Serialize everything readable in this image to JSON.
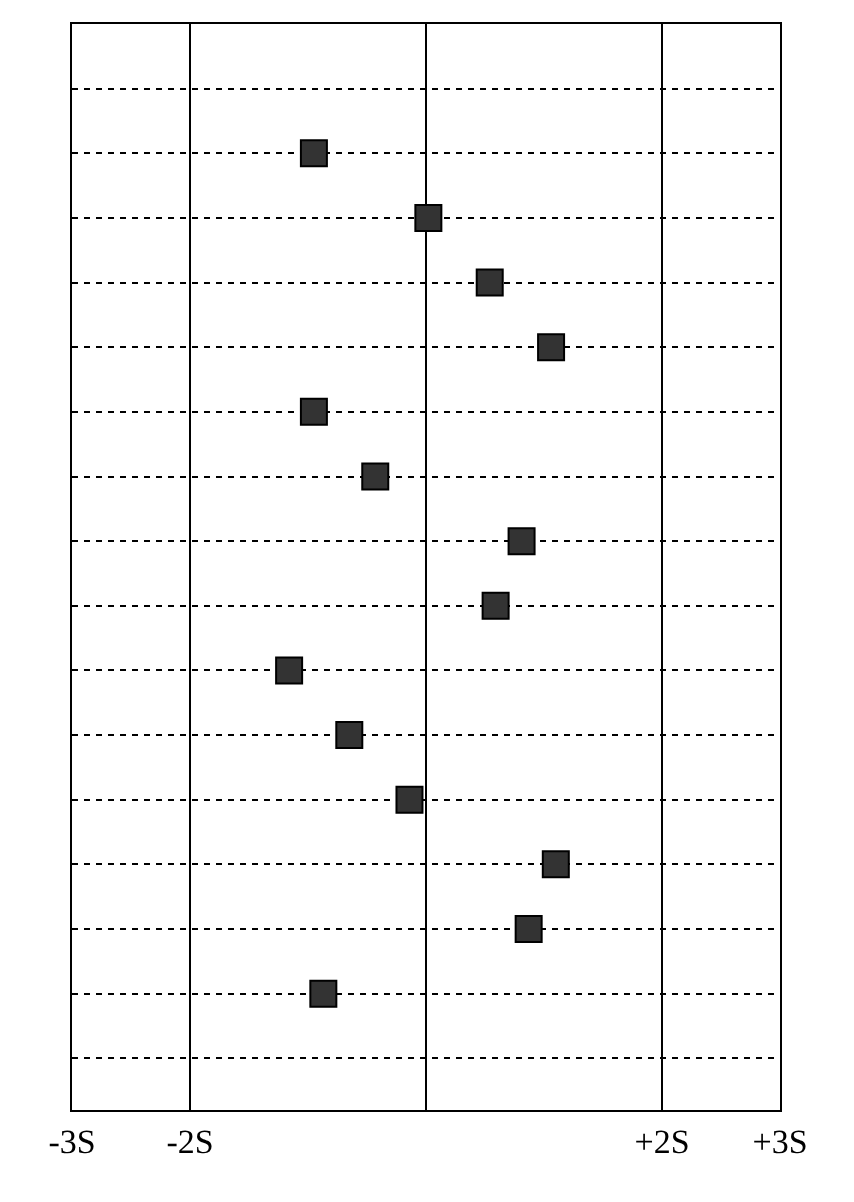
{
  "chart_data": {
    "type": "scatter",
    "orientation": "horizontal",
    "categories": [
      null,
      null,
      null,
      null,
      null,
      null,
      null,
      null,
      null,
      null,
      null,
      null,
      null,
      null,
      null,
      null
    ],
    "values": [
      null,
      -0.95,
      0.02,
      0.54,
      1.06,
      -0.95,
      -0.43,
      0.81,
      0.59,
      -1.16,
      -0.65,
      -0.14,
      1.1,
      0.87,
      -0.87,
      null
    ],
    "color": "#333333",
    "marker": "square",
    "xlim": [
      -3,
      3
    ],
    "xticks": [
      {
        "value": -3,
        "label": "-3S"
      },
      {
        "value": -2,
        "label": "-2S"
      },
      {
        "value": 0,
        "label": null
      },
      {
        "value": 2,
        "label": "+2S"
      },
      {
        "value": 3,
        "label": "+3S"
      }
    ],
    "grid": true,
    "tick_labels": "x",
    "legend": false
  }
}
